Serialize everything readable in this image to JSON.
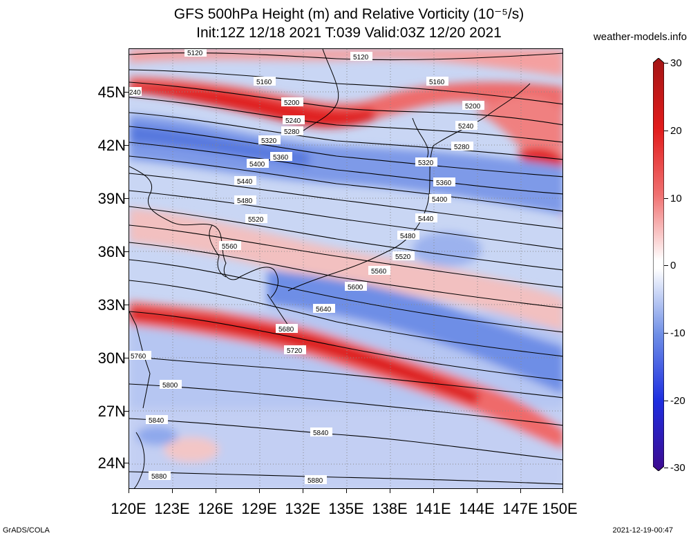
{
  "title": {
    "line1": "GFS 500hPa Height (m) and Relative Vorticity (10⁻⁵/s)",
    "line2": "Init:12Z 12/18 2021 T:039 Valid:03Z 12/20 2021"
  },
  "site": "weather-models.info",
  "map": {
    "lat_labels": [
      "45N",
      "42N",
      "39N",
      "36N",
      "33N",
      "30N",
      "27N",
      "24N"
    ],
    "lon_labels": [
      "120E",
      "123E",
      "126E",
      "129E",
      "132E",
      "135E",
      "138E",
      "141E",
      "144E",
      "147E",
      "150E"
    ],
    "contour_labels": [
      "5120",
      "5160",
      "5200",
      "5240",
      "5280",
      "5320",
      "5360",
      "5400",
      "5440",
      "5480",
      "5520",
      "5560",
      "5600",
      "5640",
      "5680",
      "5720",
      "5760",
      "5800",
      "5840",
      "5880"
    ],
    "left_edge_label": "240"
  },
  "colorbar": {
    "labels": [
      "30",
      "20",
      "10",
      "0",
      "-10",
      "-20",
      "-30"
    ],
    "colors": [
      "#3d0a8f",
      "#1e2ee0",
      "#5a7df0",
      "#b8c8f8",
      "#ffffff",
      "#f7b8b8",
      "#ee5a5a",
      "#e11b1b",
      "#b71c1c"
    ]
  },
  "footer": {
    "left": "GrADS/COLA",
    "right": "2021-12-19-00:47"
  }
}
